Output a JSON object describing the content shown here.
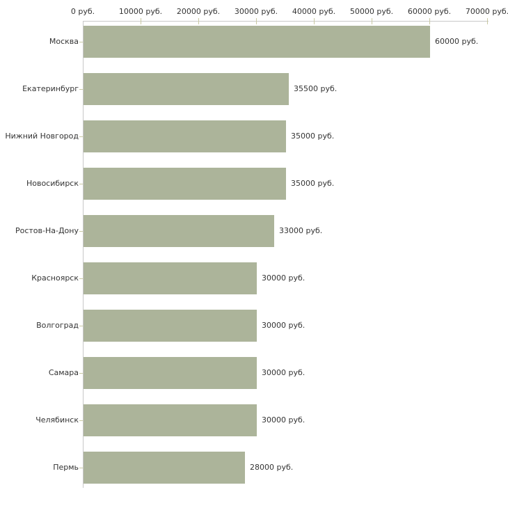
{
  "chart_data": {
    "type": "bar",
    "orientation": "horizontal",
    "title": "",
    "xlabel": "",
    "ylabel": "",
    "unit": "руб.",
    "categories": [
      "Москва",
      "Екатеринбург",
      "Нижний Новгород",
      "Новосибирск",
      "Ростов-На-Дону",
      "Красноярск",
      "Волгоград",
      "Самара",
      "Челябинск",
      "Пермь"
    ],
    "values": [
      60000,
      35500,
      35000,
      35000,
      33000,
      30000,
      30000,
      30000,
      30000,
      28000
    ],
    "value_labels": [
      "60000 руб.",
      "35500 руб.",
      "35000 руб.",
      "35000 руб.",
      "33000 руб.",
      "30000 руб.",
      "30000 руб.",
      "30000 руб.",
      "30000 руб.",
      "28000 руб."
    ],
    "x_ticks": [
      0,
      10000,
      20000,
      30000,
      40000,
      50000,
      60000,
      70000
    ],
    "x_tick_labels": [
      "0 руб.",
      "10000 руб.",
      "20000 руб.",
      "30000 руб.",
      "40000 руб.",
      "50000 руб.",
      "60000 руб.",
      "70000 руб."
    ],
    "xlim": [
      0,
      70000
    ],
    "grid": false,
    "legend": "none",
    "colors": {
      "bar": "#acb49a",
      "axis": "#c8c8c8",
      "tick": "#c9c9a2",
      "text": "#333333",
      "background": "#ffffff"
    }
  }
}
